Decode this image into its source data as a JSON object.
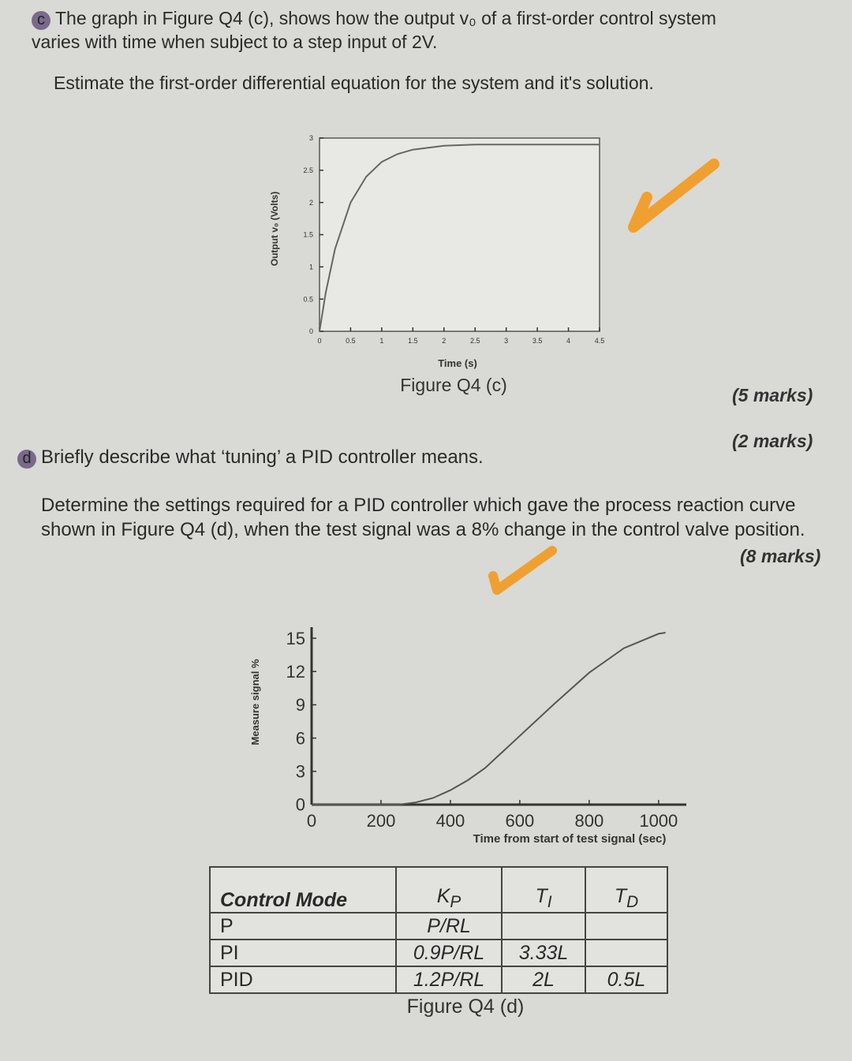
{
  "question_c": {
    "label": "c",
    "text": "The graph in Figure Q4 (c), shows how the output v₀ of a first-order control system varies with time when subject to a step input of 2V.",
    "task": "Estimate the first-order differential equation for the system and it's solution.",
    "marks": "(5 marks)"
  },
  "question_d": {
    "label": "d",
    "text": "Briefly describe what ‘tuning’ a PID controller means.",
    "marks": "(2 marks)",
    "task": "Determine the settings required for a PID controller which gave the process reaction curve shown in Figure Q4 (d), when the test signal was a 8% change in the control valve position.",
    "task_marks": "(8 marks)"
  },
  "chart_data": [
    {
      "type": "line",
      "caption": "Figure Q4 (c)",
      "xlabel": "Time (s)",
      "ylabel": "Output v₀ (Volts)",
      "color": "#666666",
      "x": [
        0,
        0.1,
        0.25,
        0.5,
        0.75,
        1,
        1.25,
        1.5,
        2,
        2.5,
        3,
        3.5,
        4,
        4.5
      ],
      "values": [
        0,
        0.6,
        1.28,
        2.0,
        2.4,
        2.63,
        2.75,
        2.82,
        2.88,
        2.9,
        2.9,
        2.9,
        2.9,
        2.9
      ],
      "xlim": [
        0,
        4.5
      ],
      "ylim": [
        0,
        3
      ],
      "xticks": [
        0,
        0.5,
        1,
        1.5,
        2,
        2.5,
        3,
        3.5,
        4,
        4.5
      ],
      "yticks": [
        0,
        0.5,
        1,
        1.5,
        2,
        2.5,
        3
      ]
    },
    {
      "type": "line",
      "caption": "Figure Q4 (d)",
      "xlabel": "Time from start of test signal (sec)",
      "ylabel": "Measure signal %",
      "color": "#555555",
      "x": [
        0,
        200,
        250,
        300,
        350,
        400,
        450,
        500,
        600,
        700,
        800,
        900,
        1000,
        1020
      ],
      "values": [
        0,
        0,
        0,
        0.2,
        0.6,
        1.3,
        2.2,
        3.3,
        6.2,
        9.1,
        11.9,
        14.1,
        15.4,
        15.5
      ],
      "xlim": [
        0,
        1080
      ],
      "ylim": [
        0,
        16
      ],
      "xticks": [
        0,
        200,
        400,
        600,
        800,
        1000
      ],
      "yticks": [
        0,
        3,
        6,
        9,
        12,
        15
      ]
    }
  ],
  "table": {
    "header": [
      "Control Mode",
      {
        "base": "K",
        "sub": "P"
      },
      {
        "base": "T",
        "sub": "I"
      },
      {
        "base": "T",
        "sub": "D"
      }
    ],
    "rows": [
      [
        "P",
        "P/RL",
        "",
        ""
      ],
      [
        "PI",
        "0.9P/RL",
        "3.33L",
        ""
      ],
      [
        "PID",
        "1.2P/RL",
        "2L",
        "0.5L"
      ]
    ]
  }
}
